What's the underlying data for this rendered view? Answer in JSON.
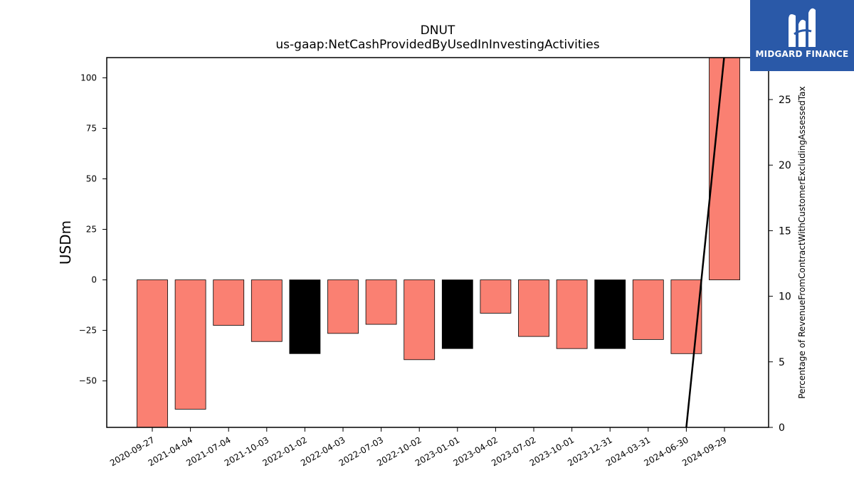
{
  "chart_data": {
    "type": "bar",
    "title": "DNUT",
    "subtitle": "us-gaap:NetCashProvidedByUsedInInvestingActivities",
    "ylabel": "USDm",
    "ylabel_right": "Percentage of RevenueFromContractWithCustomerExcludingAssessedTax",
    "categories": [
      "2020-09-27",
      "2021-04-04",
      "2021-07-04",
      "2021-10-03",
      "2022-01-02",
      "2022-04-03",
      "2022-07-03",
      "2022-10-02",
      "2023-01-01",
      "2023-04-02",
      "2023-07-02",
      "2023-10-01",
      "2023-12-31",
      "2024-03-31",
      "2024-06-30",
      "2024-09-29"
    ],
    "values": [
      -73,
      -64,
      -22.5,
      -30.5,
      -36.5,
      -26.5,
      -22,
      -39.5,
      -34,
      -16.5,
      -28,
      -34,
      -34,
      -29.5,
      -36.5,
      110
    ],
    "bar_colors": [
      "#fa8072",
      "#fa8072",
      "#fa8072",
      "#fa8072",
      "#000000",
      "#fa8072",
      "#fa8072",
      "#fa8072",
      "#000000",
      "#fa8072",
      "#fa8072",
      "#fa8072",
      "#000000",
      "#fa8072",
      "#fa8072",
      "#fa8072"
    ],
    "ylim": [
      -73,
      110
    ],
    "yticks": [
      -50,
      -25,
      0,
      25,
      50,
      75,
      100
    ],
    "y2lim": [
      0,
      28.2
    ],
    "y2ticks": [
      0,
      5,
      10,
      15,
      20,
      25
    ],
    "line_series": {
      "x": [
        "2024-06-30",
        "2024-09-29"
      ],
      "values": [
        0,
        28.5
      ],
      "color": "#000000"
    },
    "grid": false
  },
  "logo": {
    "text": "MIDGARD FINANCE",
    "color": "#2a59a8"
  }
}
